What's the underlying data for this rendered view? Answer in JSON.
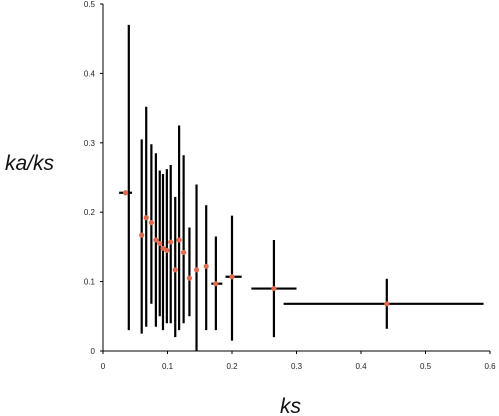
{
  "chart_data": {
    "type": "scatter",
    "title": "",
    "xlabel": "ks",
    "ylabel": "ka/ks",
    "xlim": [
      0,
      0.6
    ],
    "ylim": [
      0,
      0.5
    ],
    "x_ticks": [
      "0",
      "0.1",
      "0.2",
      "0.3",
      "0.4",
      "0.5",
      "0.6"
    ],
    "y_ticks": [
      "0",
      "0.1",
      "0.2",
      "0.3",
      "0.4",
      "0.5"
    ],
    "grid": false,
    "legend": "none",
    "colors": {
      "point": "#e06a4e",
      "error_bar": "#000000",
      "axis": "#000000"
    },
    "series": [
      {
        "points": [
          {
            "x": 0.035,
            "y": 0.228,
            "x_err": [
              0.025,
              0.045
            ],
            "y_err": [
              0.228,
              0.228
            ]
          },
          {
            "x": 0.06,
            "y": 0.167,
            "x_err": [
              0.06,
              0.06
            ],
            "y_err": [
              0.025,
              0.305
            ]
          },
          {
            "x": 0.067,
            "y": 0.192,
            "x_err": [
              0.067,
              0.067
            ],
            "y_err": [
              0.035,
              0.352
            ]
          },
          {
            "x": 0.075,
            "y": 0.185,
            "x_err": [
              0.075,
              0.075
            ],
            "y_err": [
              0.068,
              0.298
            ]
          },
          {
            "x": 0.082,
            "y": 0.16,
            "x_err": [
              0.082,
              0.082
            ],
            "y_err": [
              0.035,
              0.285
            ]
          },
          {
            "x": 0.088,
            "y": 0.155,
            "x_err": [
              0.088,
              0.088
            ],
            "y_err": [
              0.05,
              0.26
            ]
          },
          {
            "x": 0.093,
            "y": 0.148,
            "x_err": [
              0.093,
              0.093
            ],
            "y_err": [
              0.03,
              0.255
            ]
          },
          {
            "x": 0.099,
            "y": 0.145,
            "x_err": [
              0.099,
              0.099
            ],
            "y_err": [
              0.04,
              0.262
            ]
          },
          {
            "x": 0.105,
            "y": 0.157,
            "x_err": [
              0.105,
              0.105
            ],
            "y_err": [
              0.04,
              0.268
            ]
          },
          {
            "x": 0.112,
            "y": 0.117,
            "x_err": [
              0.112,
              0.112
            ],
            "y_err": [
              0.02,
              0.222
            ]
          },
          {
            "x": 0.118,
            "y": 0.16,
            "x_err": [
              0.118,
              0.118
            ],
            "y_err": [
              0.03,
              0.325
            ]
          },
          {
            "x": 0.125,
            "y": 0.142,
            "x_err": [
              0.125,
              0.125
            ],
            "y_err": [
              0.04,
              0.282
            ]
          },
          {
            "x": 0.134,
            "y": 0.105,
            "x_err": [
              0.134,
              0.134
            ],
            "y_err": [
              0.05,
              0.178
            ]
          },
          {
            "x": 0.145,
            "y": 0.117,
            "x_err": [
              0.145,
              0.145
            ],
            "y_err": [
              0.0,
              0.24
            ]
          },
          {
            "x": 0.16,
            "y": 0.122,
            "x_err": [
              0.16,
              0.16
            ],
            "y_err": [
              0.03,
              0.21
            ]
          },
          {
            "x": 0.175,
            "y": 0.097,
            "x_err": [
              0.168,
              0.185
            ],
            "y_err": [
              0.03,
              0.165
            ]
          },
          {
            "x": 0.2,
            "y": 0.107,
            "x_err": [
              0.19,
              0.215
            ],
            "y_err": [
              0.015,
              0.195
            ]
          },
          {
            "x": 0.265,
            "y": 0.09,
            "x_err": [
              0.23,
              0.3
            ],
            "y_err": [
              0.02,
              0.16
            ]
          },
          {
            "x": 0.44,
            "y": 0.068,
            "x_err": [
              0.28,
              0.59
            ],
            "y_err": [
              0.032,
              0.104
            ]
          }
        ]
      }
    ]
  }
}
